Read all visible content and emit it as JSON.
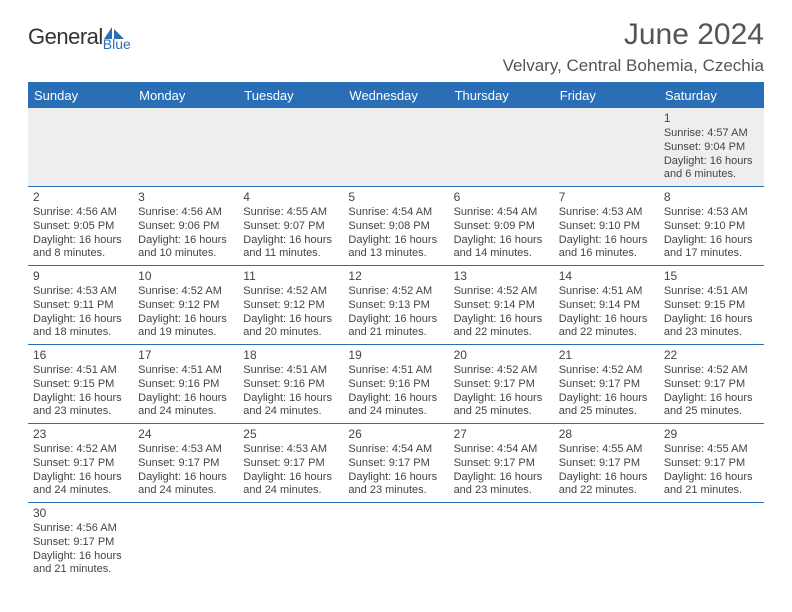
{
  "brand": {
    "name_main": "General",
    "name_sub": "Blue",
    "main_color": "#333333",
    "sub_color": "#2a6fb5"
  },
  "title": {
    "month": "June 2024",
    "location": "Velvary, Central Bohemia, Czechia",
    "title_color": "#555555",
    "month_fontsize": 30,
    "loc_fontsize": 17
  },
  "colors": {
    "header_bg": "#2a6fb5",
    "header_text": "#ffffff",
    "row_border": "#2a6fb5",
    "first_week_bg": "#eeeeee",
    "body_text": "#444444",
    "page_bg": "#ffffff"
  },
  "day_headers": [
    "Sunday",
    "Monday",
    "Tuesday",
    "Wednesday",
    "Thursday",
    "Friday",
    "Saturday"
  ],
  "weeks": [
    [
      null,
      null,
      null,
      null,
      null,
      null,
      {
        "d": "1",
        "sr": "Sunrise: 4:57 AM",
        "ss": "Sunset: 9:04 PM",
        "dl1": "Daylight: 16 hours",
        "dl2": "and 6 minutes."
      }
    ],
    [
      {
        "d": "2",
        "sr": "Sunrise: 4:56 AM",
        "ss": "Sunset: 9:05 PM",
        "dl1": "Daylight: 16 hours",
        "dl2": "and 8 minutes."
      },
      {
        "d": "3",
        "sr": "Sunrise: 4:56 AM",
        "ss": "Sunset: 9:06 PM",
        "dl1": "Daylight: 16 hours",
        "dl2": "and 10 minutes."
      },
      {
        "d": "4",
        "sr": "Sunrise: 4:55 AM",
        "ss": "Sunset: 9:07 PM",
        "dl1": "Daylight: 16 hours",
        "dl2": "and 11 minutes."
      },
      {
        "d": "5",
        "sr": "Sunrise: 4:54 AM",
        "ss": "Sunset: 9:08 PM",
        "dl1": "Daylight: 16 hours",
        "dl2": "and 13 minutes."
      },
      {
        "d": "6",
        "sr": "Sunrise: 4:54 AM",
        "ss": "Sunset: 9:09 PM",
        "dl1": "Daylight: 16 hours",
        "dl2": "and 14 minutes."
      },
      {
        "d": "7",
        "sr": "Sunrise: 4:53 AM",
        "ss": "Sunset: 9:10 PM",
        "dl1": "Daylight: 16 hours",
        "dl2": "and 16 minutes."
      },
      {
        "d": "8",
        "sr": "Sunrise: 4:53 AM",
        "ss": "Sunset: 9:10 PM",
        "dl1": "Daylight: 16 hours",
        "dl2": "and 17 minutes."
      }
    ],
    [
      {
        "d": "9",
        "sr": "Sunrise: 4:53 AM",
        "ss": "Sunset: 9:11 PM",
        "dl1": "Daylight: 16 hours",
        "dl2": "and 18 minutes."
      },
      {
        "d": "10",
        "sr": "Sunrise: 4:52 AM",
        "ss": "Sunset: 9:12 PM",
        "dl1": "Daylight: 16 hours",
        "dl2": "and 19 minutes."
      },
      {
        "d": "11",
        "sr": "Sunrise: 4:52 AM",
        "ss": "Sunset: 9:12 PM",
        "dl1": "Daylight: 16 hours",
        "dl2": "and 20 minutes."
      },
      {
        "d": "12",
        "sr": "Sunrise: 4:52 AM",
        "ss": "Sunset: 9:13 PM",
        "dl1": "Daylight: 16 hours",
        "dl2": "and 21 minutes."
      },
      {
        "d": "13",
        "sr": "Sunrise: 4:52 AM",
        "ss": "Sunset: 9:14 PM",
        "dl1": "Daylight: 16 hours",
        "dl2": "and 22 minutes."
      },
      {
        "d": "14",
        "sr": "Sunrise: 4:51 AM",
        "ss": "Sunset: 9:14 PM",
        "dl1": "Daylight: 16 hours",
        "dl2": "and 22 minutes."
      },
      {
        "d": "15",
        "sr": "Sunrise: 4:51 AM",
        "ss": "Sunset: 9:15 PM",
        "dl1": "Daylight: 16 hours",
        "dl2": "and 23 minutes."
      }
    ],
    [
      {
        "d": "16",
        "sr": "Sunrise: 4:51 AM",
        "ss": "Sunset: 9:15 PM",
        "dl1": "Daylight: 16 hours",
        "dl2": "and 23 minutes."
      },
      {
        "d": "17",
        "sr": "Sunrise: 4:51 AM",
        "ss": "Sunset: 9:16 PM",
        "dl1": "Daylight: 16 hours",
        "dl2": "and 24 minutes."
      },
      {
        "d": "18",
        "sr": "Sunrise: 4:51 AM",
        "ss": "Sunset: 9:16 PM",
        "dl1": "Daylight: 16 hours",
        "dl2": "and 24 minutes."
      },
      {
        "d": "19",
        "sr": "Sunrise: 4:51 AM",
        "ss": "Sunset: 9:16 PM",
        "dl1": "Daylight: 16 hours",
        "dl2": "and 24 minutes."
      },
      {
        "d": "20",
        "sr": "Sunrise: 4:52 AM",
        "ss": "Sunset: 9:17 PM",
        "dl1": "Daylight: 16 hours",
        "dl2": "and 25 minutes."
      },
      {
        "d": "21",
        "sr": "Sunrise: 4:52 AM",
        "ss": "Sunset: 9:17 PM",
        "dl1": "Daylight: 16 hours",
        "dl2": "and 25 minutes."
      },
      {
        "d": "22",
        "sr": "Sunrise: 4:52 AM",
        "ss": "Sunset: 9:17 PM",
        "dl1": "Daylight: 16 hours",
        "dl2": "and 25 minutes."
      }
    ],
    [
      {
        "d": "23",
        "sr": "Sunrise: 4:52 AM",
        "ss": "Sunset: 9:17 PM",
        "dl1": "Daylight: 16 hours",
        "dl2": "and 24 minutes."
      },
      {
        "d": "24",
        "sr": "Sunrise: 4:53 AM",
        "ss": "Sunset: 9:17 PM",
        "dl1": "Daylight: 16 hours",
        "dl2": "and 24 minutes."
      },
      {
        "d": "25",
        "sr": "Sunrise: 4:53 AM",
        "ss": "Sunset: 9:17 PM",
        "dl1": "Daylight: 16 hours",
        "dl2": "and 24 minutes."
      },
      {
        "d": "26",
        "sr": "Sunrise: 4:54 AM",
        "ss": "Sunset: 9:17 PM",
        "dl1": "Daylight: 16 hours",
        "dl2": "and 23 minutes."
      },
      {
        "d": "27",
        "sr": "Sunrise: 4:54 AM",
        "ss": "Sunset: 9:17 PM",
        "dl1": "Daylight: 16 hours",
        "dl2": "and 23 minutes."
      },
      {
        "d": "28",
        "sr": "Sunrise: 4:55 AM",
        "ss": "Sunset: 9:17 PM",
        "dl1": "Daylight: 16 hours",
        "dl2": "and 22 minutes."
      },
      {
        "d": "29",
        "sr": "Sunrise: 4:55 AM",
        "ss": "Sunset: 9:17 PM",
        "dl1": "Daylight: 16 hours",
        "dl2": "and 21 minutes."
      }
    ],
    [
      {
        "d": "30",
        "sr": "Sunrise: 4:56 AM",
        "ss": "Sunset: 9:17 PM",
        "dl1": "Daylight: 16 hours",
        "dl2": "and 21 minutes."
      },
      null,
      null,
      null,
      null,
      null,
      null
    ]
  ]
}
